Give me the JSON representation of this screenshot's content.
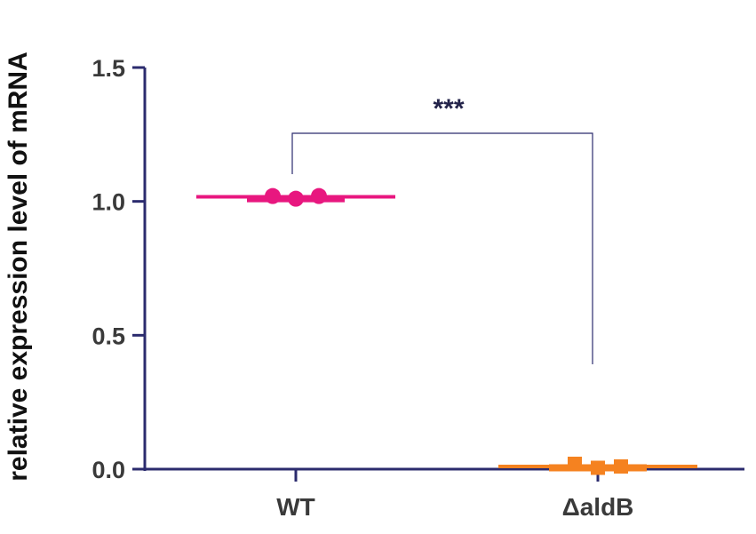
{
  "chart_data": {
    "type": "scatter",
    "title": "",
    "xlabel": "",
    "ylabel": "relative expression level of mRNA",
    "ylim": [
      0,
      1.5
    ],
    "yticks": [
      "0.0",
      "0.5",
      "1.0",
      "1.5"
    ],
    "categories": [
      "WT",
      "ΔaldB"
    ],
    "groups": [
      {
        "category": "WT",
        "points": [
          1.02,
          1.01,
          1.02
        ],
        "mean": 1.017,
        "color": "#e8177f"
      },
      {
        "category": "ΔaldB",
        "points": [
          0.02,
          0.005,
          0.01
        ],
        "mean": 0.01,
        "color": "#f58220"
      }
    ],
    "significance": {
      "label": "***",
      "between": [
        "WT",
        "ΔaldB"
      ]
    },
    "grid": false,
    "axis_color": "#2b2b6e"
  }
}
